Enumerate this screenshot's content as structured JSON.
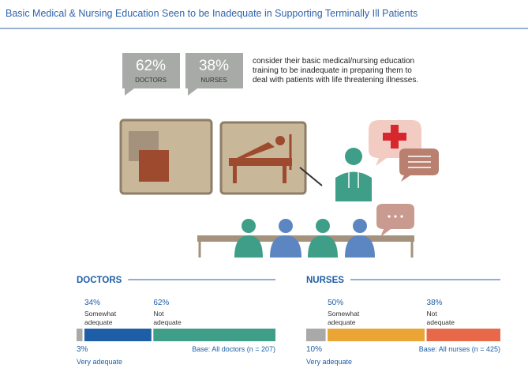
{
  "title": "Basic Medical & Nursing Education Seen to be Inadequate in Supporting Terminally Ill Patients",
  "callouts": [
    {
      "figure": "62%",
      "group": "DOCTORS"
    },
    {
      "figure": "38%",
      "group": "NURSES"
    }
  ],
  "callout_text": [
    "consider their basic medical/nursing education",
    "training to be inadequate in preparing them to",
    "deal with patients with life threatening illnesses."
  ],
  "chart_data": [
    {
      "type": "stacked-bar",
      "title": "DOCTORS",
      "note": "Base: All doctors (n = 207)",
      "series": [
        {
          "name": "Very adequate",
          "color": "#a9a9a7",
          "values": [
            3
          ],
          "value_labels": [
            "3%"
          ]
        },
        {
          "name": "Somewhat adequate",
          "color": "#1d5ea6",
          "values": [
            34
          ],
          "value_labels": [
            "34%"
          ]
        },
        {
          "name": "Not adequate",
          "color": "#3f9e87",
          "values": [
            62
          ],
          "value_labels": [
            "62%"
          ]
        }
      ]
    },
    {
      "type": "stacked-bar",
      "title": "NURSES",
      "note": "Base: All nurses (n = 425)",
      "series": [
        {
          "name": "Very adequate",
          "color": "#a9a9a7",
          "values": [
            10
          ],
          "value_labels": [
            "10%"
          ]
        },
        {
          "name": "Somewhat adequate",
          "color": "#eba535",
          "values": [
            50
          ],
          "value_labels": [
            "50%"
          ]
        },
        {
          "name": "Not adequate",
          "color": "#e8694a",
          "values": [
            38
          ],
          "value_labels": [
            "38%"
          ]
        }
      ]
    }
  ]
}
